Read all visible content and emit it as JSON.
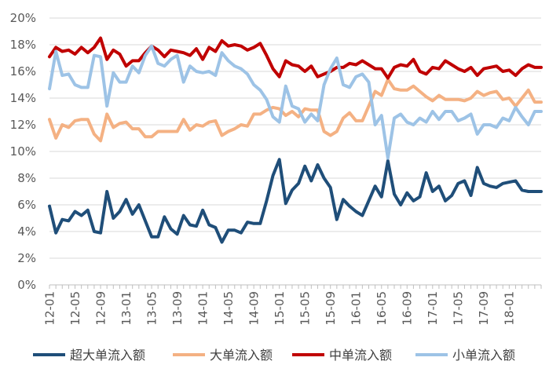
{
  "chart_data": {
    "type": "line",
    "title": "",
    "xlabel": "",
    "ylabel": "",
    "ylim": [
      0,
      20
    ],
    "y_ticks": [
      "0%",
      "2%",
      "4%",
      "6%",
      "8%",
      "10%",
      "12%",
      "14%",
      "16%",
      "18%",
      "20%"
    ],
    "y_unit": "%",
    "grid": "horizontal",
    "legend_position": "bottom",
    "x_tick_labels": [
      "12-01",
      "12-05",
      "12-09",
      "13-01",
      "13-05",
      "13-09",
      "14-01",
      "14-05",
      "14-09",
      "15-01",
      "15-05",
      "15-09",
      "16-01",
      "16-05",
      "16-09",
      "17-01",
      "17-05",
      "17-09",
      "18-01"
    ],
    "x": [
      "12-01",
      "12-02",
      "12-03",
      "12-04",
      "12-05",
      "12-06",
      "12-07",
      "12-08",
      "12-09",
      "12-10",
      "12-11",
      "12-12",
      "13-01",
      "13-02",
      "13-03",
      "13-04",
      "13-05",
      "13-06",
      "13-07",
      "13-08",
      "13-09",
      "13-10",
      "13-11",
      "13-12",
      "14-01",
      "14-02",
      "14-03",
      "14-04",
      "14-05",
      "14-06",
      "14-07",
      "14-08",
      "14-09",
      "14-10",
      "14-11",
      "14-12",
      "15-01",
      "15-02",
      "15-03",
      "15-04",
      "15-05",
      "15-06",
      "15-07",
      "15-08",
      "15-09",
      "15-10",
      "15-11",
      "15-12",
      "16-01",
      "16-02",
      "16-03",
      "16-04",
      "16-05",
      "16-06",
      "16-07",
      "16-08",
      "16-09",
      "16-10",
      "16-11",
      "16-12",
      "17-01",
      "17-02",
      "17-03",
      "17-04",
      "17-05",
      "17-06",
      "17-07",
      "17-08",
      "17-09",
      "17-10",
      "17-11",
      "17-12",
      "18-01",
      "18-02",
      "18-03",
      "18-04",
      "18-05",
      "18-06"
    ],
    "series": [
      {
        "name": "超大单流入额",
        "color": "#1f4e79",
        "values": [
          5.9,
          3.9,
          4.9,
          4.8,
          5.5,
          5.2,
          5.6,
          4.0,
          3.9,
          7.0,
          5.0,
          5.5,
          6.4,
          5.3,
          6.0,
          4.8,
          3.6,
          3.6,
          5.1,
          4.2,
          3.8,
          5.2,
          4.5,
          4.4,
          5.6,
          4.5,
          4.3,
          3.2,
          4.1,
          4.1,
          3.9,
          4.7,
          4.6,
          4.6,
          6.3,
          8.2,
          9.4,
          6.1,
          7.1,
          7.6,
          8.9,
          7.8,
          9.0,
          8.0,
          7.3,
          4.9,
          6.4,
          5.9,
          5.5,
          5.2,
          6.3,
          7.4,
          6.6,
          9.3,
          6.8,
          6.0,
          6.9,
          6.3,
          6.6,
          8.4,
          7.0,
          7.4,
          6.3,
          6.7,
          7.6,
          7.8,
          6.7,
          8.8,
          7.6,
          7.4,
          7.3,
          7.6,
          7.7,
          7.8,
          7.1,
          7.0,
          7.0,
          7.0
        ]
      },
      {
        "name": "大单流入额",
        "color": "#f4b183",
        "values": [
          12.4,
          11.0,
          12.0,
          11.8,
          12.3,
          12.4,
          12.4,
          11.3,
          10.8,
          12.8,
          11.8,
          12.1,
          12.2,
          11.7,
          11.7,
          11.1,
          11.1,
          11.5,
          11.5,
          11.5,
          11.5,
          12.4,
          11.6,
          12.0,
          11.9,
          12.2,
          12.3,
          11.2,
          11.5,
          11.7,
          12.0,
          11.9,
          12.8,
          12.8,
          13.1,
          13.3,
          13.2,
          12.7,
          13.0,
          12.6,
          13.2,
          13.1,
          13.1,
          11.5,
          11.2,
          11.5,
          12.5,
          12.9,
          12.3,
          12.3,
          13.4,
          14.5,
          14.2,
          15.4,
          14.7,
          14.6,
          14.6,
          14.9,
          14.5,
          14.1,
          13.8,
          14.2,
          13.9,
          13.9,
          13.9,
          13.8,
          14.0,
          14.5,
          14.2,
          14.4,
          14.5,
          13.9,
          14.0,
          13.4,
          14.0,
          14.6,
          13.7,
          13.7
        ]
      },
      {
        "name": "中单流入额",
        "color": "#c00000",
        "values": [
          17.1,
          17.8,
          17.5,
          17.6,
          17.3,
          17.8,
          17.4,
          17.8,
          18.5,
          16.9,
          17.6,
          17.3,
          16.4,
          16.8,
          16.8,
          17.4,
          17.9,
          17.6,
          17.1,
          17.6,
          17.5,
          17.4,
          17.2,
          17.7,
          16.9,
          17.8,
          17.5,
          18.3,
          17.9,
          18.0,
          17.9,
          17.6,
          17.8,
          18.1,
          17.2,
          16.2,
          15.6,
          16.8,
          16.5,
          16.4,
          16.0,
          16.4,
          15.6,
          15.8,
          16.0,
          16.3,
          16.3,
          16.6,
          16.5,
          16.8,
          16.5,
          16.2,
          16.2,
          15.5,
          16.3,
          16.5,
          16.4,
          16.9,
          16.0,
          15.8,
          16.3,
          16.2,
          16.8,
          16.5,
          16.2,
          16.0,
          16.3,
          15.7,
          16.2,
          16.3,
          16.4,
          16.0,
          16.1,
          15.7,
          16.2,
          16.5,
          16.3,
          16.3
        ]
      },
      {
        "name": "小单流入额",
        "color": "#9dc3e6",
        "values": [
          14.7,
          17.5,
          15.7,
          15.8,
          15.0,
          14.8,
          14.8,
          17.2,
          17.1,
          13.4,
          15.9,
          15.2,
          15.2,
          16.4,
          15.9,
          17.2,
          17.9,
          16.6,
          16.4,
          16.9,
          17.2,
          15.2,
          16.4,
          16.0,
          15.9,
          16.0,
          15.7,
          17.4,
          16.8,
          16.4,
          16.2,
          15.8,
          15.0,
          14.6,
          13.9,
          12.6,
          12.2,
          14.9,
          13.4,
          13.2,
          12.2,
          12.8,
          12.3,
          15.0,
          16.2,
          17.0,
          15.0,
          14.8,
          15.6,
          15.8,
          15.2,
          12.0,
          12.7,
          9.5,
          12.5,
          12.8,
          12.2,
          12.0,
          12.5,
          12.2,
          13.0,
          12.4,
          13.0,
          13.0,
          12.3,
          12.5,
          12.8,
          11.3,
          12.0,
          12.0,
          11.8,
          12.5,
          12.3,
          13.3,
          12.6,
          12.0,
          13.0,
          13.0
        ]
      }
    ]
  }
}
